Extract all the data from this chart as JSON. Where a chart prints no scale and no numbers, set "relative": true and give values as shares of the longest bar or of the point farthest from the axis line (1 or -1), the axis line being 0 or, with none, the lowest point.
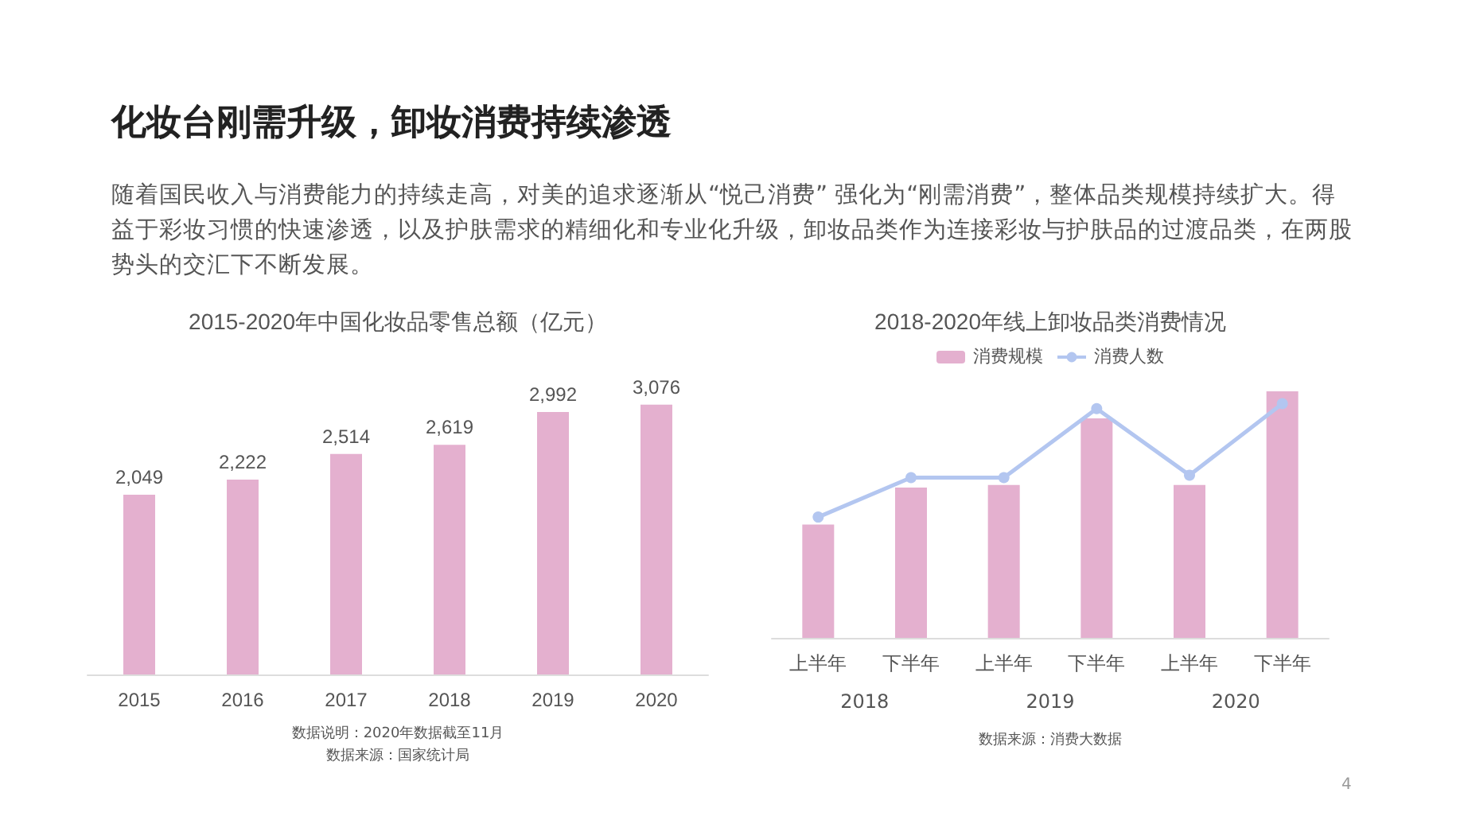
{
  "chart_data": [
    {
      "type": "other",
      "title": "化妆台刚需升级，卸妆消费持续渗透",
      "subtitle": "随着国民收入与消费能力的持续走高，对美的追求逐渐从“悦己消费” 强化为“刚需消费”，整体品类规模持续扩大。得益于彩妆习惯的快速渗透，以及护肤需求的精细化和专业化升级，卸妆品类作为连接彩妆与护肤品的过渡品类，在两股势头的交汇下不断发展。",
      "annotations": [
        "4"
      ]
    },
    {
      "type": "bar",
      "title": "2015-2020年中国化妆品零售总额（亿元）",
      "categories": [
        "2015",
        "2016",
        "2017",
        "2018",
        "2019",
        "2020"
      ],
      "values": [
        2049,
        2222,
        2514,
        2619,
        2992,
        3076
      ],
      "color": "#e4b0cf",
      "data_labels": true,
      "value_labels": [
        "2,049",
        "2,222",
        "2,514",
        "2,619",
        "2,992",
        "3,076"
      ],
      "annotations": [
        "数据来源：国家统计局",
        "数据说明：2020年数据截至11月"
      ]
    },
    {
      "type": "bar",
      "title": "2018-2020年线上卸妆品类消费情况",
      "relative": true,
      "categories": [
        "上半年",
        "下半年",
        "上半年",
        "下半年",
        "上半年",
        "下半年"
      ],
      "series": [
        {
          "name": "消费规模",
          "type": "bar",
          "color": "#e4b0cf",
          "values": [
            0.46,
            0.61,
            0.62,
            0.89,
            0.62,
            1
          ]
        },
        {
          "name": "消费人数",
          "type": "line",
          "color": "#b3c6f0",
          "values": [
            0.49,
            0.65,
            0.65,
            0.93,
            0.66,
            0.95
          ]
        }
      ],
      "marker": "circle",
      "legend": "top",
      "annotations": [
        "2018",
        "2019",
        "2020",
        "数据来源：消费大数据"
      ]
    }
  ]
}
